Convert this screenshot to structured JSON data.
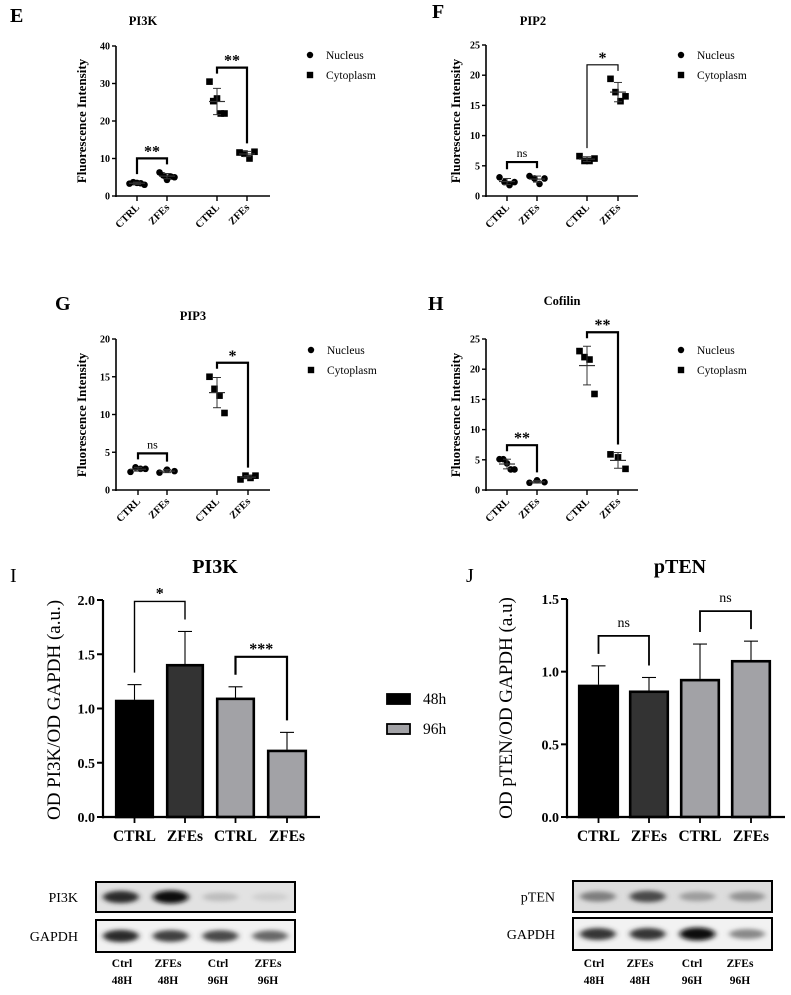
{
  "chart_data": [
    {
      "panel": "E",
      "type": "scatter",
      "title": "PI3K",
      "ylabel": "Fluorescence Intensity",
      "ylim": [
        0,
        40
      ],
      "yticks": [
        "0",
        "10",
        "20",
        "30",
        "40"
      ],
      "categories": [
        "CTRL",
        "ZFEs",
        "CTRL",
        "ZFEs"
      ],
      "legend": {
        "position": "top-right",
        "items": [
          {
            "label": "Nucleus",
            "marker": "circle"
          },
          {
            "label": "Cytoplasm",
            "marker": "square"
          }
        ]
      },
      "groups": [
        {
          "category": "CTRL",
          "series": "Nucleus",
          "points": [
            3.3,
            3.7,
            3.5,
            3.4,
            3.0
          ],
          "mean": 3.4,
          "sd": 0.3
        },
        {
          "category": "ZFEs",
          "series": "Nucleus",
          "points": [
            6.3,
            5.5,
            4.3,
            5.2,
            5.0
          ],
          "mean": 5.3,
          "sd": 0.7
        },
        {
          "category": "CTRL",
          "series": "Cytoplasm",
          "points": [
            30.5,
            25.3,
            26.0,
            22.0,
            22.0
          ],
          "mean": 25.2,
          "sd": 3.5
        },
        {
          "category": "ZFEs",
          "series": "Cytoplasm",
          "points": [
            11.6,
            11.3,
            10.0,
            11.8
          ],
          "mean": 11.2,
          "sd": 0.7
        }
      ],
      "comparisons": [
        {
          "from": 0,
          "to": 1,
          "label": "**"
        },
        {
          "from": 2,
          "to": 3,
          "label": "**"
        }
      ]
    },
    {
      "panel": "F",
      "type": "scatter",
      "title": "PIP2",
      "ylabel": "Fluorescence Intensity",
      "ylim": [
        0,
        25
      ],
      "yticks": [
        "0",
        "5",
        "10",
        "15",
        "20",
        "25"
      ],
      "categories": [
        "CTRL",
        "ZFEs",
        "CTRL",
        "ZFEs"
      ],
      "legend": {
        "position": "top-right",
        "items": [
          {
            "label": "Nucleus",
            "marker": "circle"
          },
          {
            "label": "Cytoplasm",
            "marker": "square"
          }
        ]
      },
      "groups": [
        {
          "category": "CTRL",
          "series": "Nucleus",
          "points": [
            3.1,
            2.3,
            1.8,
            2.3
          ],
          "mean": 2.4,
          "sd": 0.5
        },
        {
          "category": "ZFEs",
          "series": "Nucleus",
          "points": [
            3.3,
            2.9,
            2.0,
            2.9
          ],
          "mean": 2.8,
          "sd": 0.5
        },
        {
          "category": "CTRL",
          "series": "Cytoplasm",
          "points": [
            6.6,
            5.8,
            5.8,
            6.2
          ],
          "mean": 6.1,
          "sd": 0.4
        },
        {
          "category": "ZFEs",
          "series": "Cytoplasm",
          "points": [
            19.4,
            17.2,
            15.7,
            16.5
          ],
          "mean": 17.2,
          "sd": 1.6
        }
      ],
      "comparisons": [
        {
          "from": 0,
          "to": 1,
          "label": "ns"
        },
        {
          "from": 2,
          "to": 3,
          "label": "*"
        }
      ]
    },
    {
      "panel": "G",
      "type": "scatter",
      "title": "PIP3",
      "ylabel": "Fluorescence Intensity",
      "ylim": [
        0,
        20
      ],
      "yticks": [
        "0",
        "5",
        "10",
        "15",
        "20"
      ],
      "categories": [
        "CTRL",
        "ZFEs",
        "CTRL",
        "ZFEs"
      ],
      "legend": {
        "position": "top-right",
        "items": [
          {
            "label": "Nucleus",
            "marker": "circle"
          },
          {
            "label": "Cytoplasm",
            "marker": "square"
          }
        ]
      },
      "groups": [
        {
          "category": "CTRL",
          "series": "Nucleus",
          "points": [
            2.4,
            3.0,
            2.8,
            2.8
          ],
          "mean": 2.75,
          "sd": 0.25
        },
        {
          "category": "ZFEs",
          "series": "Nucleus",
          "points": [
            2.3,
            2.7,
            2.5
          ],
          "mean": 2.5,
          "sd": 0.2
        },
        {
          "category": "CTRL",
          "series": "Cytoplasm",
          "points": [
            15.0,
            13.4,
            12.5,
            10.2
          ],
          "mean": 12.9,
          "sd": 2.0
        },
        {
          "category": "ZFEs",
          "series": "Cytoplasm",
          "points": [
            1.4,
            1.9,
            1.6,
            1.9
          ],
          "mean": 1.7,
          "sd": 0.2
        }
      ],
      "comparisons": [
        {
          "from": 0,
          "to": 1,
          "label": "ns"
        },
        {
          "from": 2,
          "to": 3,
          "label": "*"
        }
      ]
    },
    {
      "panel": "H",
      "type": "scatter",
      "title": "Cofilin",
      "ylabel": "Fluorescence Intensity",
      "ylim": [
        0,
        25
      ],
      "yticks": [
        "0",
        "5",
        "10",
        "15",
        "20",
        "25"
      ],
      "categories": [
        "CTRL",
        "ZFEs",
        "CTRL",
        "ZFEs"
      ],
      "legend": {
        "position": "top-right",
        "items": [
          {
            "label": "Nucleus",
            "marker": "circle"
          },
          {
            "label": "Cytoplasm",
            "marker": "square"
          }
        ]
      },
      "groups": [
        {
          "category": "CTRL",
          "series": "Nucleus",
          "points": [
            5.1,
            5.1,
            4.4,
            3.4,
            3.4
          ],
          "mean": 4.3,
          "sd": 0.8
        },
        {
          "category": "ZFEs",
          "series": "Nucleus",
          "points": [
            1.2,
            1.6,
            1.3
          ],
          "mean": 1.35,
          "sd": 0.2
        },
        {
          "category": "CTRL",
          "series": "Cytoplasm",
          "points": [
            23.0,
            22.0,
            21.6,
            15.9
          ],
          "mean": 20.6,
          "sd": 3.2
        },
        {
          "category": "ZFEs",
          "series": "Cytoplasm",
          "points": [
            5.9,
            5.4,
            3.5
          ],
          "mean": 4.9,
          "sd": 1.3
        }
      ],
      "comparisons": [
        {
          "from": 0,
          "to": 1,
          "label": "**"
        },
        {
          "from": 2,
          "to": 3,
          "label": "**"
        }
      ]
    },
    {
      "panel": "I",
      "type": "bar",
      "title": "PI3K",
      "ylabel": "OD PI3K/OD GAPDH (a.u.)",
      "ylim": [
        0,
        2.0
      ],
      "yticks": [
        "0.0",
        "0.5",
        "1.0",
        "1.5",
        "2.0"
      ],
      "categories": [
        "CTRL",
        "ZFEs",
        "CTRL",
        "ZFEs"
      ],
      "values": [
        1.08,
        1.41,
        1.1,
        0.62
      ],
      "error_upper": [
        1.22,
        1.71,
        1.2,
        0.78
      ],
      "fills": [
        "#000000",
        "#333333",
        "#a2a2a6",
        "#a2a2a6"
      ],
      "comparisons": [
        {
          "from": 0,
          "to": 1,
          "label": "*"
        },
        {
          "from": 2,
          "to": 3,
          "label": "***"
        }
      ]
    },
    {
      "panel": "J",
      "type": "bar",
      "title": "pTEN",
      "ylabel": "OD pTEN/OD GAPDH (a.u)",
      "ylim": [
        0,
        1.5
      ],
      "yticks": [
        "0.0",
        "0.5",
        "1.0",
        "1.5"
      ],
      "categories": [
        "CTRL",
        "ZFEs",
        "CTRL",
        "ZFEs"
      ],
      "values": [
        0.91,
        0.87,
        0.95,
        1.08
      ],
      "error_upper": [
        1.04,
        0.96,
        1.19,
        1.21
      ],
      "fills": [
        "#000000",
        "#333333",
        "#a2a2a6",
        "#a2a2a6"
      ],
      "comparisons": [
        {
          "from": 0,
          "to": 1,
          "label": "ns"
        },
        {
          "from": 2,
          "to": 3,
          "label": "ns"
        }
      ]
    }
  ],
  "bar_legend": [
    {
      "label": "48h",
      "color": "#000000"
    },
    {
      "label": "96h",
      "color": "#a2a2a6"
    }
  ],
  "blots": [
    {
      "panel": "I",
      "rows": [
        {
          "label": "PI3K",
          "intensities": [
            0.85,
            1.0,
            0.15,
            0.06
          ]
        },
        {
          "label": "GAPDH",
          "intensities": [
            0.85,
            0.75,
            0.7,
            0.55
          ]
        }
      ],
      "lanes": [
        {
          "line1": "Ctrl",
          "line2": "48H"
        },
        {
          "line1": "ZFEs",
          "line2": "48H"
        },
        {
          "line1": "Ctrl",
          "line2": "96H"
        },
        {
          "line1": "ZFEs",
          "line2": "96H"
        }
      ]
    },
    {
      "panel": "J",
      "rows": [
        {
          "label": "pTEN",
          "intensities": [
            0.45,
            0.7,
            0.3,
            0.35
          ]
        },
        {
          "label": "GAPDH",
          "intensities": [
            0.8,
            0.8,
            1.0,
            0.4
          ]
        }
      ],
      "lanes": [
        {
          "line1": "Ctrl",
          "line2": "48H"
        },
        {
          "line1": "ZFEs",
          "line2": "48H"
        },
        {
          "line1": "Ctrl",
          "line2": "96H"
        },
        {
          "line1": "ZFEs",
          "line2": "96H"
        }
      ]
    }
  ]
}
